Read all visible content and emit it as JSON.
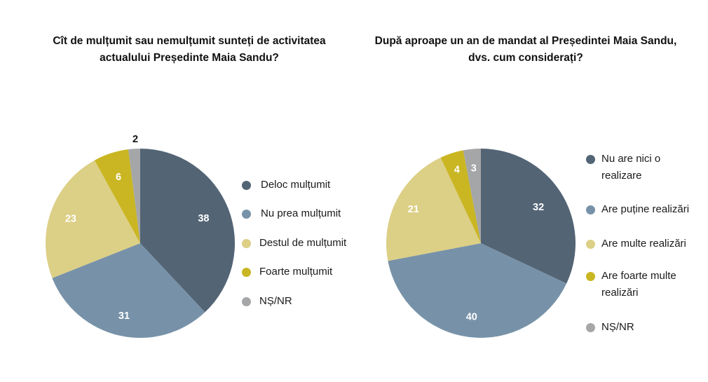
{
  "chart_data": [
    {
      "type": "pie",
      "title": "Cît de mulțumit sau nemulțumit sunteți de activitatea actualului Președinte Maia Sandu?",
      "categories": [
        "Deloc mulțumit",
        "Nu prea mulțumit",
        "Destul de mulțumit",
        "Foarte mulțumit",
        "NȘ/NR"
      ],
      "values": [
        38,
        31,
        23,
        6,
        2
      ],
      "labels": [
        "38",
        "31",
        "23",
        "6",
        "2"
      ],
      "colors": [
        "#536475",
        "#7792a8",
        "#dccf86",
        "#c9b622",
        "#a5a6a8"
      ],
      "start": "12 o'clock",
      "direction": "clockwise",
      "legend": "right"
    },
    {
      "type": "pie",
      "title": "După aproape un an de mandat al Președintei Maia Sandu, dvs. cum considerați?",
      "categories": [
        "Nu are nici o realizare",
        "Are puține realizări",
        "Are multe realizări",
        "Are foarte multe realizări",
        "NȘ/NR"
      ],
      "values": [
        32,
        40,
        21,
        4,
        3
      ],
      "labels": [
        "32",
        "40",
        "21",
        "4",
        "3"
      ],
      "colors": [
        "#536475",
        "#7792a8",
        "#dccf86",
        "#c9b622",
        "#a5a6a8"
      ],
      "start": "12 o'clock",
      "direction": "clockwise",
      "legend": "right"
    }
  ],
  "titles": {
    "left_line1": "Cît de mulțumit sau nemulțumit sunteți de activitatea",
    "left_line2": "actualului Președinte Maia Sandu?",
    "right_line1": "După aproape un an de mandat al Președintei Maia Sandu,",
    "right_line2": "dvs. cum considerați?"
  },
  "legend_left": [
    {
      "label": "Deloc mulțumit"
    },
    {
      "label": "Nu prea mulțumit"
    },
    {
      "label": "Destul de mulțumit"
    },
    {
      "label": "Foarte mulțumit"
    },
    {
      "label": "NȘ/NR"
    }
  ],
  "legend_right": [
    {
      "line1": "Nu are nici o",
      "line2": "realizare"
    },
    {
      "line1": "Are puține realizări",
      "line2": ""
    },
    {
      "line1": "Are multe realizări",
      "line2": ""
    },
    {
      "line1": "Are foarte multe",
      "line2": "realizări"
    },
    {
      "line1": "NȘ/NR",
      "line2": ""
    }
  ]
}
